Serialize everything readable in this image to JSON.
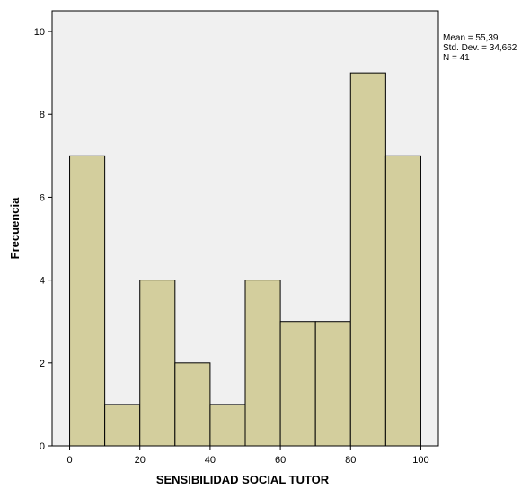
{
  "chart_data": {
    "type": "bar",
    "subtype": "histogram",
    "bins": [
      {
        "x0": 0,
        "x1": 10,
        "count": 7
      },
      {
        "x0": 10,
        "x1": 20,
        "count": 1
      },
      {
        "x0": 20,
        "x1": 30,
        "count": 4
      },
      {
        "x0": 30,
        "x1": 40,
        "count": 2
      },
      {
        "x0": 40,
        "x1": 50,
        "count": 1
      },
      {
        "x0": 50,
        "x1": 60,
        "count": 4
      },
      {
        "x0": 60,
        "x1": 70,
        "count": 3
      },
      {
        "x0": 70,
        "x1": 80,
        "count": 3
      },
      {
        "x0": 80,
        "x1": 90,
        "count": 9
      },
      {
        "x0": 90,
        "x1": 100,
        "count": 7
      }
    ],
    "xlabel": "SENSIBILIDAD SOCIAL TUTOR",
    "ylabel": "Frecuencia",
    "xlim": [
      -5,
      105
    ],
    "ylim": [
      0,
      10.5
    ],
    "xticks": [
      "0",
      "20",
      "40",
      "60",
      "80",
      "100"
    ],
    "yticks": [
      "0",
      "2",
      "4",
      "6",
      "8",
      "10"
    ],
    "grid": false,
    "bar_color": "#d3ce9d",
    "plot_background": "#f0f0f0",
    "stats": {
      "mean": "Mean = 55,39",
      "std": "Std. Dev. = 34,662",
      "n": "N = 41"
    },
    "stats_position": "top-right"
  }
}
